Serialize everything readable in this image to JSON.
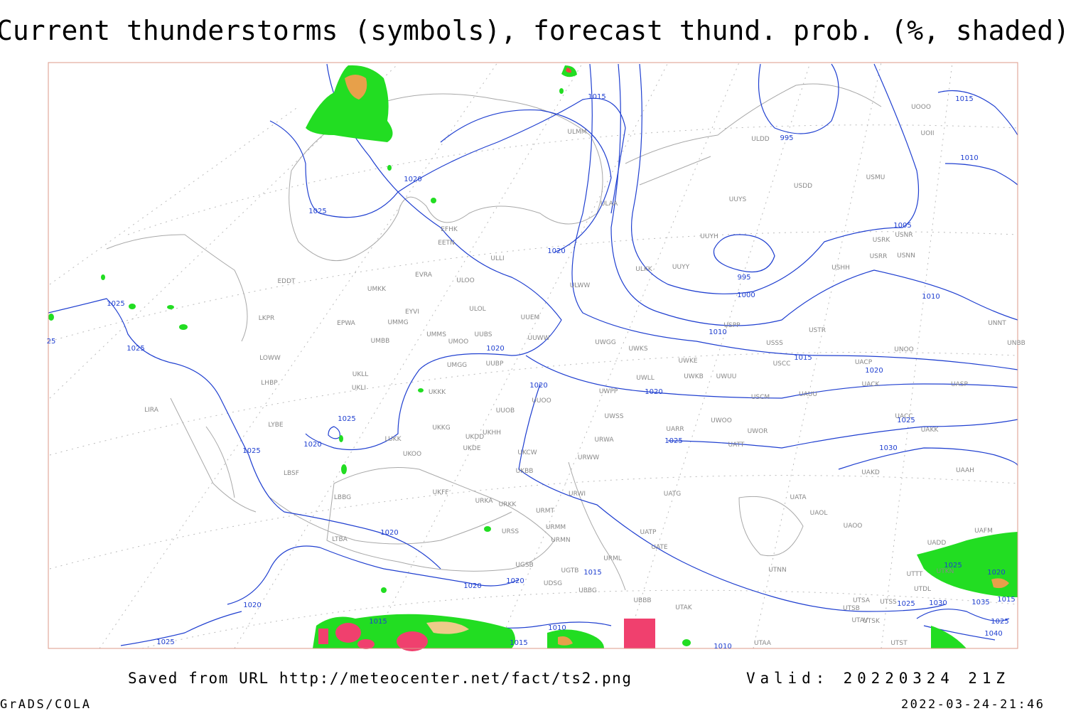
{
  "header": {
    "title": "Current thunderstorms (symbols), forecast thund. prob. (%, shaded)"
  },
  "footer": {
    "saved": "Saved from URL http://meteocenter.net/fact/ts2.png",
    "valid": "Valid: 20220324 21Z",
    "software": "GrADS/COLA",
    "timestamp": "2022-03-24-21:46"
  },
  "map": {
    "station_labels": [
      "ULDD",
      "USDD",
      "USMU",
      "UUYS",
      "ULAA",
      "UUYH",
      "USRK",
      "USNR",
      "USRR",
      "USNN",
      "USHH",
      "ULKK",
      "UUYY",
      "ULWW",
      "UUEM",
      "UUWW",
      "UWGG",
      "UWKS",
      "USPP",
      "USTR",
      "USSS",
      "USCC",
      "UWKE",
      "UWKB",
      "UWUU",
      "UWLL",
      "UWPP",
      "USCM",
      "UAUU",
      "UACP",
      "UACK",
      "UASP",
      "UNOO",
      "UNNT",
      "UNBB",
      "UACC",
      "UAKK",
      "UWSS",
      "UARR",
      "UWOO",
      "UWOR",
      "UATT",
      "URWA",
      "URWW",
      "UAKD",
      "UAAH",
      "UATG",
      "URWI",
      "UATA",
      "UAOL",
      "UAOO",
      "UAFM",
      "UADD",
      "UTTT",
      "UTKN",
      "UTDL",
      "UTNN",
      "UTSA",
      "UTSS",
      "UTSB",
      "UTAV",
      "UTSK",
      "UTAA",
      "UTST",
      "UTAK",
      "UBBB",
      "UATE",
      "UATP",
      "UOOO",
      "UOII",
      "EDDT",
      "EYVI",
      "EVRA",
      "EFHK",
      "EETN",
      "ULLI",
      "ULOO",
      "ULOL",
      "UMKK",
      "UMMG",
      "EPWA",
      "LKPR",
      "UMMS",
      "UMOO",
      "UUBS",
      "UMBB",
      "LOWW",
      "UKLL",
      "UKLI",
      "UMGG",
      "UUBP",
      "LHBP",
      "UKKK",
      "UUOO",
      "UUOB",
      "LIRA",
      "LYBE",
      "UKKG",
      "UKDD",
      "UKHH",
      "UKDE",
      "LUKK",
      "UKOO",
      "UKCW",
      "UKFF",
      "URKA",
      "URKK",
      "URMT",
      "URSS",
      "URMM",
      "URMN",
      "URML",
      "UGSB",
      "UGTB",
      "UDSG",
      "UBBG",
      "LBSF",
      "LBBG",
      "LTBA",
      "ULMM",
      "UKBB"
    ],
    "isobar_labels": [
      "1015",
      "995",
      "1020",
      "1025",
      "1020",
      "1005",
      "995",
      "1000",
      "1010",
      "1010",
      "1015",
      "1020",
      "1025",
      "25",
      "1025",
      "1020",
      "1020",
      "1020",
      "1025",
      "1020",
      "1025",
      "1025",
      "1025",
      "1030",
      "1020",
      "1025",
      "1020",
      "1015",
      "1020",
      "1020",
      "1020",
      "1025",
      "1030",
      "1035",
      "1015",
      "1025",
      "1040",
      "1015",
      "1010",
      "1015",
      "1025",
      "1010",
      "1015",
      "1010"
    ]
  }
}
